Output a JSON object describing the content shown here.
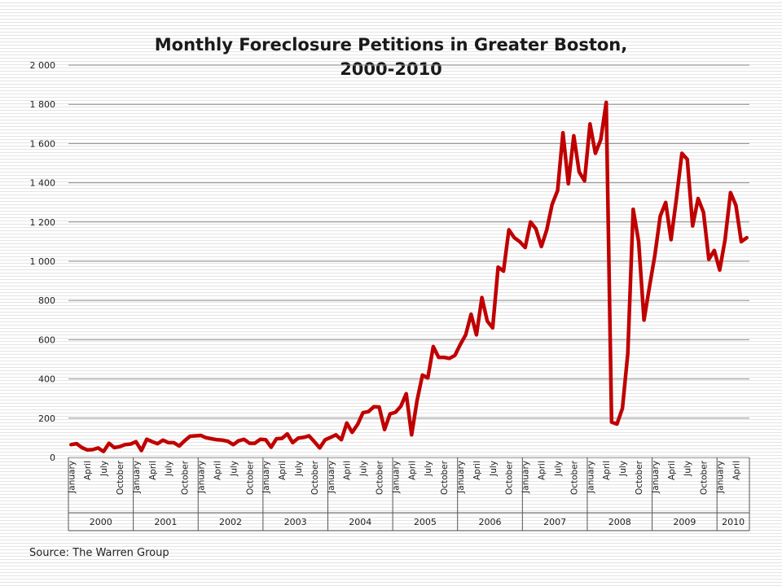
{
  "chart_data": {
    "type": "line",
    "title_lines": [
      "Monthly Foreclosure Petitions in Greater Boston,",
      "2000-2010"
    ],
    "source": "Source: The Warren Group",
    "ylim": [
      0,
      2000
    ],
    "yticks": [
      {
        "value": 0,
        "label": "0"
      },
      {
        "value": 200,
        "label": "200"
      },
      {
        "value": 400,
        "label": "400"
      },
      {
        "value": 600,
        "label": "600"
      },
      {
        "value": 800,
        "label": "800"
      },
      {
        "value": 1000,
        "label": "1 000"
      },
      {
        "value": 1200,
        "label": "1 200"
      },
      {
        "value": 1400,
        "label": "1 400"
      },
      {
        "value": 1600,
        "label": "1 600"
      },
      {
        "value": 1800,
        "label": "1 800"
      },
      {
        "value": 2000,
        "label": "2 000"
      }
    ],
    "grid": true,
    "legend": "none",
    "line_color": "#c00000",
    "month_labels": [
      {
        "index": 0,
        "label": "January"
      },
      {
        "index": 3,
        "label": "April"
      },
      {
        "index": 6,
        "label": "July"
      },
      {
        "index": 9,
        "label": "October"
      },
      {
        "index": 12,
        "label": "January"
      },
      {
        "index": 15,
        "label": "April"
      },
      {
        "index": 18,
        "label": "July"
      },
      {
        "index": 21,
        "label": "October"
      },
      {
        "index": 24,
        "label": "January"
      },
      {
        "index": 27,
        "label": "April"
      },
      {
        "index": 30,
        "label": "July"
      },
      {
        "index": 33,
        "label": "October"
      },
      {
        "index": 36,
        "label": "January"
      },
      {
        "index": 39,
        "label": "April"
      },
      {
        "index": 42,
        "label": "July"
      },
      {
        "index": 45,
        "label": "October"
      },
      {
        "index": 48,
        "label": "January"
      },
      {
        "index": 51,
        "label": "April"
      },
      {
        "index": 54,
        "label": "July"
      },
      {
        "index": 57,
        "label": "October"
      },
      {
        "index": 60,
        "label": "January"
      },
      {
        "index": 63,
        "label": "April"
      },
      {
        "index": 66,
        "label": "July"
      },
      {
        "index": 69,
        "label": "October"
      },
      {
        "index": 72,
        "label": "January"
      },
      {
        "index": 75,
        "label": "April"
      },
      {
        "index": 78,
        "label": "July"
      },
      {
        "index": 81,
        "label": "October"
      },
      {
        "index": 84,
        "label": "January"
      },
      {
        "index": 87,
        "label": "April"
      },
      {
        "index": 90,
        "label": "July"
      },
      {
        "index": 93,
        "label": "October"
      },
      {
        "index": 96,
        "label": "January"
      },
      {
        "index": 99,
        "label": "April"
      },
      {
        "index": 102,
        "label": "July"
      },
      {
        "index": 105,
        "label": "October"
      },
      {
        "index": 108,
        "label": "January"
      },
      {
        "index": 111,
        "label": "April"
      },
      {
        "index": 114,
        "label": "July"
      },
      {
        "index": 117,
        "label": "October"
      },
      {
        "index": 120,
        "label": "January"
      },
      {
        "index": 123,
        "label": "April"
      }
    ],
    "years": [
      {
        "label": "2000",
        "start": 0,
        "months": 12
      },
      {
        "label": "2001",
        "start": 12,
        "months": 12
      },
      {
        "label": "2002",
        "start": 24,
        "months": 12
      },
      {
        "label": "2003",
        "start": 36,
        "months": 12
      },
      {
        "label": "2004",
        "start": 48,
        "months": 12
      },
      {
        "label": "2005",
        "start": 60,
        "months": 12
      },
      {
        "label": "2006",
        "start": 72,
        "months": 12
      },
      {
        "label": "2007",
        "start": 84,
        "months": 12
      },
      {
        "label": "2008",
        "start": 96,
        "months": 12
      },
      {
        "label": "2009",
        "start": 108,
        "months": 12
      },
      {
        "label": "2010",
        "start": 120,
        "months": 6
      }
    ],
    "values": [
      65,
      70,
      50,
      38,
      40,
      48,
      30,
      72,
      50,
      55,
      65,
      68,
      80,
      35,
      93,
      80,
      70,
      88,
      75,
      75,
      58,
      85,
      108,
      110,
      112,
      100,
      95,
      90,
      88,
      82,
      65,
      85,
      92,
      72,
      72,
      92,
      90,
      52,
      95,
      97,
      120,
      75,
      98,
      102,
      110,
      80,
      48,
      90,
      102,
      115,
      90,
      175,
      128,
      168,
      228,
      233,
      258,
      257,
      142,
      222,
      230,
      260,
      325,
      115,
      290,
      420,
      405,
      565,
      510,
      510,
      505,
      520,
      575,
      625,
      730,
      625,
      815,
      695,
      660,
      970,
      950,
      1160,
      1120,
      1100,
      1070,
      1200,
      1165,
      1075,
      1160,
      1290,
      1360,
      1655,
      1395,
      1640,
      1455,
      1410,
      1700,
      1550,
      1620,
      1810,
      180,
      170,
      250,
      530,
      1265,
      1100,
      700,
      870,
      1030,
      1230,
      1300,
      1110,
      1320,
      1550,
      1520,
      1180,
      1320,
      1250,
      1010,
      1055,
      955,
      1110,
      1350,
      1285,
      1100,
      1120
    ]
  }
}
